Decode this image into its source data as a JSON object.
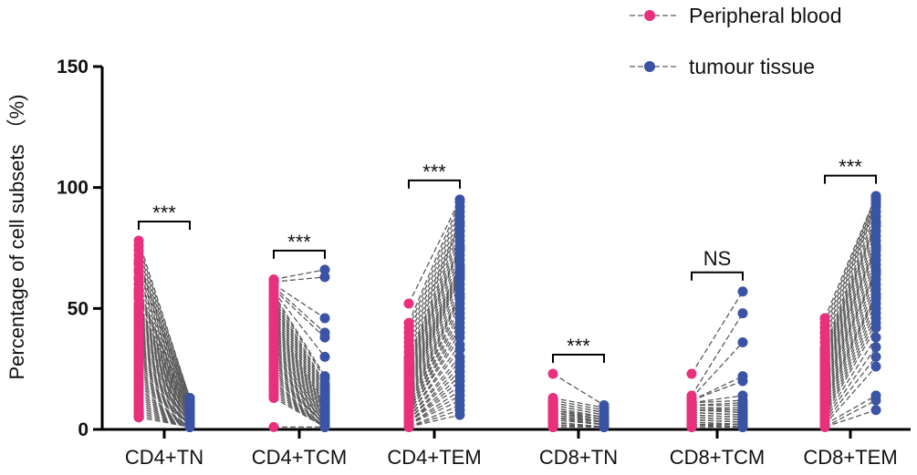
{
  "chart_data": {
    "type": "scatter",
    "subtype": "paired-dot",
    "ylabel": "Percentage of cell subsets （%)",
    "ylim": [
      0,
      150
    ],
    "yticks": [
      0,
      50,
      100,
      150
    ],
    "legend_placement": "top-right",
    "colors": {
      "peripheral": "#e8307c",
      "tumour": "#3b53a4",
      "pair_line": "#5a5a5a"
    },
    "series": [
      {
        "name": "Peripheral blood",
        "color": "#e8307c"
      },
      {
        "name": "tumour tissue",
        "color": "#3b53a4"
      }
    ],
    "categories": [
      "CD4+TN",
      "CD4+TCM",
      "CD4+TEM",
      "CD8+TN",
      "CD8+TCM",
      "CD8+TEM"
    ],
    "significance": [
      "***",
      "***",
      "***",
      "***",
      "NS",
      "***"
    ],
    "groups": [
      {
        "category": "CD4+TN",
        "peripheral_blood": [
          78,
          76,
          74,
          72,
          70,
          69,
          68,
          66,
          65,
          63,
          62,
          60,
          58,
          57,
          56,
          55,
          54,
          52,
          51,
          50,
          49,
          48,
          47,
          46,
          45,
          44,
          43,
          42,
          41,
          40,
          39,
          38,
          37,
          36,
          35,
          34,
          33,
          32,
          31,
          30,
          29,
          28,
          27,
          26,
          25,
          24,
          23,
          22,
          21,
          20,
          19,
          18,
          17,
          16,
          15,
          14,
          13,
          12,
          11,
          10,
          9,
          8,
          7,
          6,
          5
        ],
        "tumour_tissue": [
          13,
          13,
          12,
          12,
          11,
          11,
          10,
          10,
          10,
          9,
          9,
          9,
          8,
          8,
          8,
          8,
          7,
          7,
          7,
          7,
          6,
          6,
          6,
          6,
          6,
          5,
          5,
          5,
          5,
          5,
          5,
          4,
          4,
          4,
          4,
          4,
          4,
          3,
          3,
          3,
          3,
          3,
          3,
          3,
          2,
          2,
          2,
          2,
          2,
          2,
          2,
          2,
          1,
          1,
          1,
          1,
          1,
          1,
          1,
          1,
          1,
          1,
          1,
          1,
          1
        ]
      },
      {
        "category": "CD4+TCM",
        "peripheral_blood": [
          62,
          61,
          60,
          59,
          58,
          57,
          56,
          55,
          54,
          53,
          52,
          51,
          50,
          49,
          48,
          47,
          46,
          45,
          44,
          43,
          42,
          41,
          40,
          39,
          38,
          37,
          36,
          35,
          34,
          33,
          32,
          31,
          30,
          29,
          28,
          27,
          26,
          25,
          24,
          23,
          22,
          21,
          20,
          19,
          18,
          17,
          16,
          15,
          14,
          13,
          1
        ],
        "tumour_tissue": [
          66,
          63,
          46,
          40,
          38,
          30,
          22,
          21,
          19,
          18,
          17,
          16,
          15,
          14,
          13,
          12,
          11,
          10,
          10,
          9,
          9,
          8,
          8,
          7,
          7,
          6,
          6,
          5,
          5,
          5,
          4,
          4,
          4,
          3,
          3,
          3,
          3,
          2,
          2,
          2,
          2,
          2,
          1,
          1,
          1,
          1,
          1,
          1,
          1,
          1,
          1
        ]
      },
      {
        "category": "CD4+TEM",
        "peripheral_blood": [
          52,
          44,
          42,
          40,
          38,
          36,
          34,
          32,
          30,
          29,
          28,
          27,
          26,
          25,
          24,
          23,
          22,
          21,
          20,
          19,
          18,
          17,
          16,
          15,
          14,
          13,
          12,
          11,
          10,
          10,
          9,
          9,
          8,
          8,
          7,
          7,
          6,
          6,
          5,
          5,
          4,
          4,
          3,
          3,
          3,
          2,
          2,
          2,
          1,
          1,
          1
        ],
        "tumour_tissue": [
          95,
          94,
          92,
          90,
          88,
          86,
          85,
          84,
          82,
          80,
          78,
          76,
          75,
          74,
          72,
          70,
          68,
          67,
          66,
          65,
          64,
          63,
          62,
          60,
          58,
          56,
          55,
          54,
          52,
          50,
          48,
          46,
          44,
          42,
          40,
          38,
          35,
          33,
          30,
          28,
          26,
          24,
          22,
          20,
          18,
          16,
          14,
          12,
          10,
          8,
          6
        ]
      },
      {
        "category": "CD8+TN",
        "peripheral_blood": [
          23,
          13,
          12,
          11,
          11,
          10,
          10,
          9,
          9,
          8,
          8,
          8,
          7,
          7,
          7,
          6,
          6,
          6,
          5,
          5,
          5,
          5,
          4,
          4,
          4,
          4,
          3,
          3,
          3,
          3,
          2,
          2,
          2,
          2,
          2,
          1,
          1,
          1,
          1,
          1,
          1,
          1
        ],
        "tumour_tissue": [
          10,
          9,
          8,
          7,
          7,
          6,
          6,
          5,
          5,
          5,
          4,
          4,
          4,
          4,
          3,
          3,
          3,
          3,
          3,
          2,
          2,
          2,
          2,
          2,
          2,
          2,
          1,
          1,
          1,
          1,
          1,
          1,
          1,
          1,
          1,
          1,
          1,
          1,
          1,
          1,
          1,
          1
        ]
      },
      {
        "category": "CD8+TCM",
        "peripheral_blood": [
          23,
          14,
          13,
          12,
          12,
          11,
          11,
          10,
          10,
          9,
          9,
          8,
          8,
          8,
          7,
          7,
          7,
          6,
          6,
          6,
          5,
          5,
          5,
          5,
          4,
          4,
          4,
          4,
          3,
          3,
          3,
          3,
          2,
          2,
          2,
          2,
          1,
          1,
          1,
          1,
          1,
          1
        ],
        "tumour_tissue": [
          57,
          48,
          36,
          22,
          20,
          14,
          12,
          11,
          10,
          9,
          8,
          8,
          7,
          7,
          6,
          6,
          6,
          5,
          5,
          5,
          4,
          4,
          4,
          4,
          3,
          3,
          3,
          3,
          2,
          2,
          2,
          2,
          2,
          1,
          1,
          1,
          1,
          1,
          1,
          1,
          1,
          1
        ]
      },
      {
        "category": "CD8+TEM",
        "peripheral_blood": [
          46,
          44,
          42,
          40,
          38,
          36,
          34,
          33,
          32,
          31,
          30,
          29,
          28,
          27,
          26,
          25,
          24,
          23,
          22,
          21,
          20,
          19,
          18,
          17,
          16,
          15,
          14,
          13,
          12,
          11,
          10,
          9,
          8,
          7,
          6,
          5,
          4,
          3,
          2,
          2,
          1,
          1
        ],
        "tumour_tissue": [
          97,
          96,
          95,
          94,
          93,
          92,
          90,
          88,
          86,
          85,
          84,
          82,
          80,
          78,
          76,
          75,
          74,
          72,
          70,
          68,
          66,
          65,
          64,
          62,
          60,
          58,
          56,
          55,
          54,
          52,
          50,
          48,
          46,
          44,
          42,
          38,
          34,
          30,
          26,
          14,
          12,
          8
        ]
      }
    ]
  }
}
